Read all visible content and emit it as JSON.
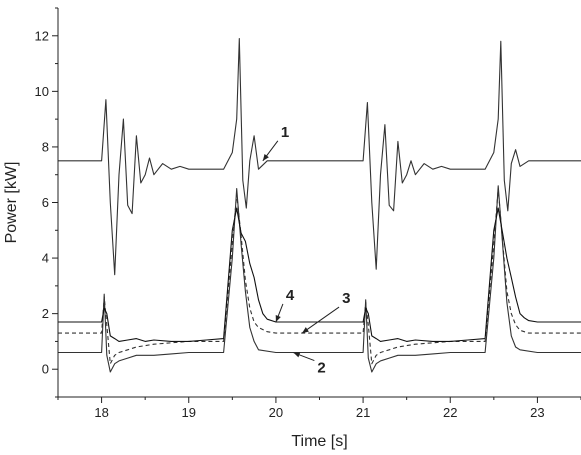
{
  "chart_data": {
    "type": "line",
    "xlabel": "Time [s]",
    "ylabel": "Power [kW]",
    "xlim": [
      17.5,
      23.5
    ],
    "ylim": [
      -1,
      13
    ],
    "xticks": [
      18,
      19,
      20,
      21,
      22,
      23
    ],
    "yticks": [
      0,
      2,
      4,
      6,
      8,
      10,
      12
    ],
    "grid": false,
    "legend": "none",
    "series": [
      {
        "label": "1",
        "color": "#333333",
        "dash": "solid",
        "x": [
          17.5,
          18.0,
          18.05,
          18.1,
          18.15,
          18.2,
          18.25,
          18.3,
          18.35,
          18.4,
          18.45,
          18.5,
          18.55,
          18.6,
          18.65,
          18.7,
          18.8,
          18.9,
          19.0,
          19.2,
          19.4,
          19.5,
          19.55,
          19.58,
          19.62,
          19.66,
          19.7,
          19.75,
          19.8,
          19.9,
          20.0,
          20.5,
          21.0,
          21.05,
          21.1,
          21.15,
          21.2,
          21.25,
          21.3,
          21.35,
          21.4,
          21.45,
          21.5,
          21.55,
          21.6,
          21.65,
          21.7,
          21.8,
          21.9,
          22.0,
          22.2,
          22.4,
          22.5,
          22.55,
          22.58,
          22.62,
          22.66,
          22.7,
          22.75,
          22.8,
          22.9,
          23.0,
          23.5
        ],
        "y": [
          7.5,
          7.5,
          9.7,
          6.0,
          3.4,
          7.0,
          9.0,
          5.9,
          5.6,
          8.4,
          6.7,
          7.0,
          7.6,
          7.0,
          7.2,
          7.4,
          7.2,
          7.3,
          7.2,
          7.2,
          7.2,
          7.8,
          9.0,
          11.9,
          6.8,
          5.8,
          7.5,
          8.4,
          7.2,
          7.5,
          7.5,
          7.5,
          7.5,
          9.6,
          6.0,
          3.6,
          7.0,
          8.8,
          5.9,
          5.7,
          8.2,
          6.7,
          7.0,
          7.5,
          7.0,
          7.2,
          7.4,
          7.2,
          7.3,
          7.2,
          7.2,
          7.2,
          7.8,
          9.0,
          11.8,
          6.8,
          5.7,
          7.4,
          7.9,
          7.3,
          7.5,
          7.5,
          7.5
        ]
      },
      {
        "label": "2",
        "color": "#333333",
        "dash": "solid",
        "x": [
          17.5,
          18.0,
          18.03,
          18.06,
          18.1,
          18.15,
          18.2,
          18.3,
          18.4,
          18.6,
          18.8,
          19.0,
          19.2,
          19.4,
          19.5,
          19.55,
          19.6,
          19.65,
          19.7,
          19.75,
          19.8,
          20.0,
          20.5,
          21.0,
          21.03,
          21.06,
          21.1,
          21.15,
          21.2,
          21.3,
          21.4,
          21.6,
          21.8,
          22.0,
          22.2,
          22.4,
          22.5,
          22.55,
          22.6,
          22.65,
          22.7,
          22.75,
          22.8,
          23.0,
          23.5
        ],
        "y": [
          0.6,
          0.6,
          2.7,
          0.5,
          -0.1,
          0.2,
          0.3,
          0.4,
          0.5,
          0.5,
          0.55,
          0.6,
          0.6,
          0.6,
          4.0,
          6.5,
          4.5,
          2.8,
          1.5,
          1.0,
          0.7,
          0.6,
          0.6,
          0.6,
          2.5,
          0.4,
          -0.1,
          0.2,
          0.3,
          0.4,
          0.5,
          0.5,
          0.55,
          0.6,
          0.6,
          0.6,
          4.0,
          6.6,
          4.5,
          2.4,
          1.2,
          0.8,
          0.7,
          0.6,
          0.6
        ]
      },
      {
        "label": "3",
        "color": "#333333",
        "dash": "dashed",
        "x": [
          17.5,
          18.0,
          18.03,
          18.06,
          18.1,
          18.15,
          18.2,
          18.3,
          18.4,
          18.6,
          18.8,
          19.0,
          19.2,
          19.4,
          19.5,
          19.55,
          19.6,
          19.65,
          19.7,
          19.75,
          19.8,
          19.9,
          20.0,
          20.5,
          21.0,
          21.03,
          21.06,
          21.1,
          21.15,
          21.2,
          21.3,
          21.4,
          21.6,
          21.8,
          22.0,
          22.2,
          22.4,
          22.5,
          22.55,
          22.6,
          22.65,
          22.7,
          22.75,
          22.8,
          22.9,
          23.0,
          23.5
        ],
        "y": [
          1.3,
          1.3,
          2.6,
          1.6,
          0.2,
          0.5,
          0.6,
          0.7,
          0.8,
          0.9,
          0.95,
          1.0,
          1.0,
          1.0,
          4.5,
          6.3,
          4.8,
          3.2,
          2.2,
          1.7,
          1.5,
          1.35,
          1.3,
          1.3,
          1.3,
          2.4,
          1.6,
          0.2,
          0.5,
          0.6,
          0.7,
          0.8,
          0.9,
          0.95,
          1.0,
          1.0,
          1.0,
          4.5,
          6.5,
          4.6,
          2.8,
          2.0,
          1.6,
          1.4,
          1.3,
          1.3,
          1.3
        ]
      },
      {
        "label": "4",
        "color": "#111111",
        "dash": "solid",
        "x": [
          17.5,
          18.0,
          18.03,
          18.06,
          18.1,
          18.15,
          18.2,
          18.3,
          18.4,
          18.5,
          18.6,
          18.8,
          19.0,
          19.2,
          19.4,
          19.5,
          19.55,
          19.6,
          19.65,
          19.7,
          19.75,
          19.8,
          19.85,
          19.9,
          20.0,
          20.5,
          21.0,
          21.03,
          21.06,
          21.1,
          21.15,
          21.2,
          21.3,
          21.4,
          21.5,
          21.6,
          21.8,
          22.0,
          22.2,
          22.4,
          22.5,
          22.55,
          22.6,
          22.65,
          22.7,
          22.75,
          22.8,
          22.85,
          22.9,
          23.0,
          23.5
        ],
        "y": [
          1.7,
          1.7,
          2.2,
          2.0,
          1.2,
          1.1,
          1.0,
          1.05,
          1.1,
          1.0,
          1.05,
          1.0,
          1.0,
          1.05,
          1.1,
          5.0,
          5.8,
          4.9,
          4.6,
          3.8,
          3.3,
          2.5,
          2.0,
          1.8,
          1.7,
          1.7,
          1.7,
          2.2,
          2.0,
          1.2,
          1.1,
          1.0,
          1.05,
          1.1,
          1.0,
          1.05,
          1.0,
          1.0,
          1.05,
          1.1,
          5.0,
          5.8,
          4.9,
          4.0,
          3.3,
          2.6,
          2.0,
          1.85,
          1.75,
          1.7,
          1.7
        ]
      }
    ],
    "annotations": [
      {
        "text": "1",
        "series": "1",
        "at_x": 19.85,
        "at_y": 7.5
      },
      {
        "text": "2",
        "series": "2",
        "at_x": 20.2,
        "at_y": 0.6
      },
      {
        "text": "3",
        "series": "3",
        "at_x": 20.3,
        "at_y": 1.3
      },
      {
        "text": "4",
        "series": "4",
        "at_x": 20.0,
        "at_y": 1.7
      }
    ]
  }
}
